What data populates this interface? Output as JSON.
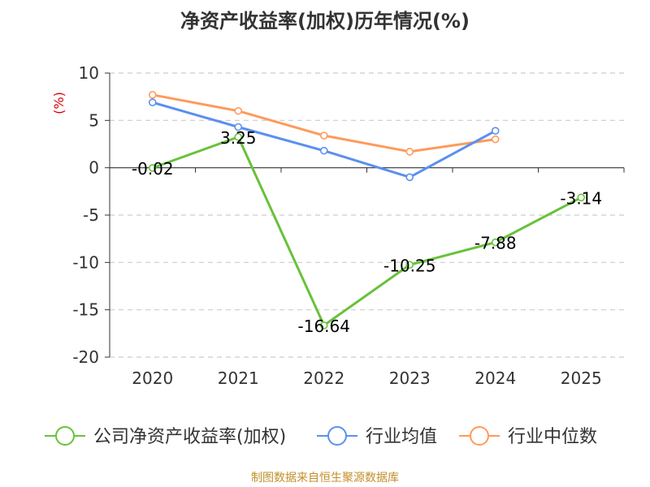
{
  "colors": {
    "series": [
      "#67c23a",
      "#5b8ff0",
      "#ff9a5c"
    ],
    "axis": "#333333",
    "grid": "#cccccc",
    "ylabel": "#dd0000",
    "source": "#c0902a"
  },
  "chart_data": {
    "type": "line",
    "title": "净资产收益率(加权)历年情况(%)",
    "xlabel": "",
    "ylabel": "(%)",
    "ylim": [
      -20,
      10
    ],
    "yticks": [
      10,
      5,
      0,
      -5,
      -10,
      -15,
      -20
    ],
    "grid": true,
    "legend_position": "bottom",
    "categories": [
      "2020",
      "2021",
      "2022",
      "2023",
      "2024",
      "2025"
    ],
    "series": [
      {
        "name": "公司净资产收益率(加权)",
        "values": [
          -0.02,
          3.25,
          -16.64,
          -10.25,
          -7.88,
          -3.14
        ],
        "labels": [
          "-0.02",
          "3.25",
          "-16.64",
          "-10.25",
          "-7.88",
          "-3.14"
        ]
      },
      {
        "name": "行业均值",
        "values": [
          6.9,
          4.3,
          1.8,
          -1.0,
          3.9,
          null
        ]
      },
      {
        "name": "行业中位数",
        "values": [
          7.7,
          6.0,
          3.4,
          1.7,
          3.0,
          null
        ]
      }
    ]
  },
  "source_text": "制图数据来自恒生聚源数据库"
}
